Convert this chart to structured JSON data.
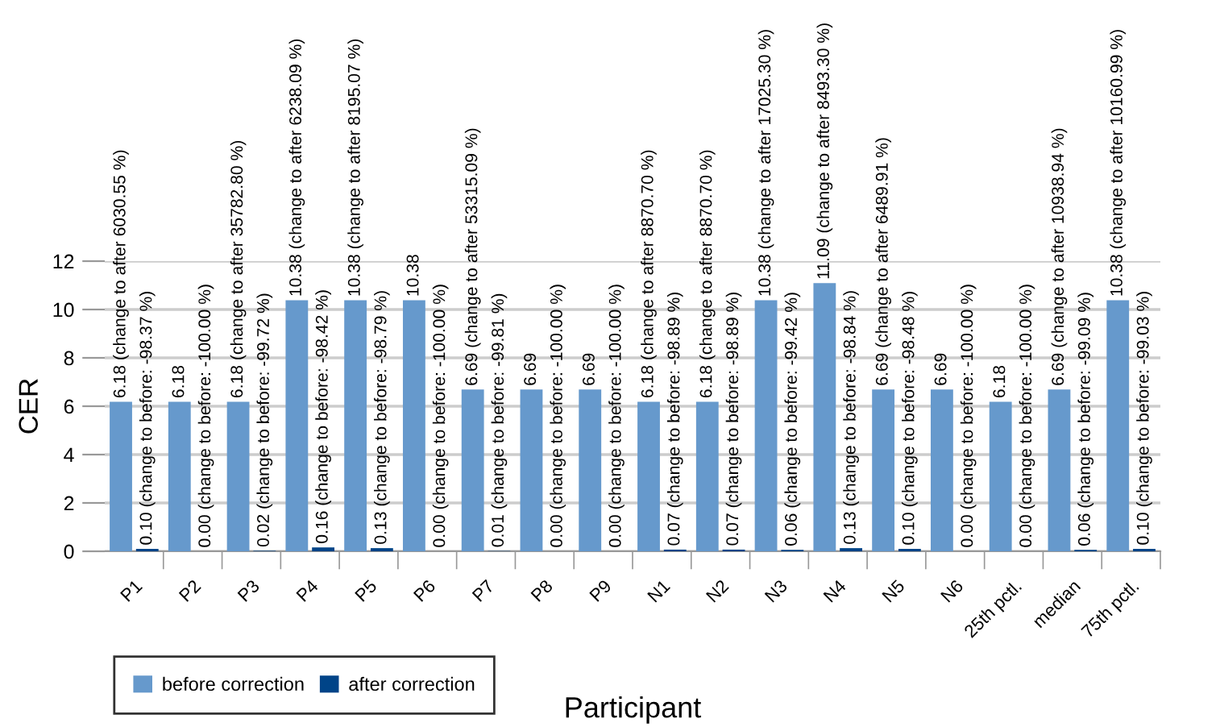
{
  "chart_data": {
    "type": "bar",
    "xlabel": "Participant",
    "ylabel": "CER",
    "categories": [
      "P1",
      "P2",
      "P3",
      "P4",
      "P5",
      "P6",
      "P7",
      "P8",
      "P9",
      "N1",
      "N2",
      "N3",
      "N4",
      "N5",
      "N6",
      "25th pctl.",
      "median",
      "75th pctl."
    ],
    "series": [
      {
        "name": "before correction",
        "color": "#6699cc",
        "values": [
          6.18,
          6.18,
          6.18,
          10.38,
          10.38,
          10.38,
          6.69,
          6.69,
          6.69,
          6.18,
          6.18,
          10.38,
          11.09,
          6.69,
          6.69,
          6.18,
          6.69,
          10.38
        ],
        "value_labels": [
          "6.18 (change to after 6030.55 %)",
          "6.18",
          "6.18 (change to after 35782.80 %)",
          "10.38 (change to after 6238.09 %)",
          "10.38 (change to after 8195.07 %)",
          "10.38",
          "6.69 (change to after 53315.09 %)",
          "6.69",
          "6.69",
          "6.18 (change to after 8870.70 %)",
          "6.18 (change to after 8870.70 %)",
          "10.38 (change to after 17025.30 %)",
          "11.09 (change to after 8493.30 %)",
          "6.69 (change to after 6489.91 %)",
          "6.69",
          "6.18",
          "6.69 (change to after 10938.94 %)",
          "10.38 (change to after 10160.99 %)"
        ]
      },
      {
        "name": "after correction",
        "color": "#004488",
        "values": [
          0.1,
          0.0,
          0.02,
          0.16,
          0.13,
          0.0,
          0.01,
          0.0,
          0.0,
          0.07,
          0.07,
          0.06,
          0.13,
          0.1,
          0.0,
          0.0,
          0.06,
          0.1
        ],
        "value_labels": [
          "0.10 (change to before: -98.37 %)",
          "0.00 (change to before: -100.00 %)",
          "0.02 (change to before: -99.72 %)",
          "0.16 (change to before: -98.42 %)",
          "0.13 (change to before: -98.79 %)",
          "0.00 (change to before: -100.00 %)",
          "0.01 (change to before: -99.81 %)",
          "0.00 (change to before: -100.00 %)",
          "0.00 (change to before: -100.00 %)",
          "0.07 (change to before: -98.89 %)",
          "0.07 (change to before: -98.89 %)",
          "0.06 (change to before: -99.42 %)",
          "0.13 (change to before: -98.84 %)",
          "0.10 (change to before: -98.48 %)",
          "0.00 (change to before: -100.00 %)",
          "0.00 (change to before: -100.00 %)",
          "0.06 (change to before: -99.09 %)",
          "0.10 (change to before: -99.03 %)"
        ]
      }
    ],
    "ylim": [
      0,
      12
    ],
    "yticks": [
      0,
      2,
      4,
      6,
      8,
      10,
      12
    ],
    "grid": "y",
    "legend": "bottom left"
  }
}
